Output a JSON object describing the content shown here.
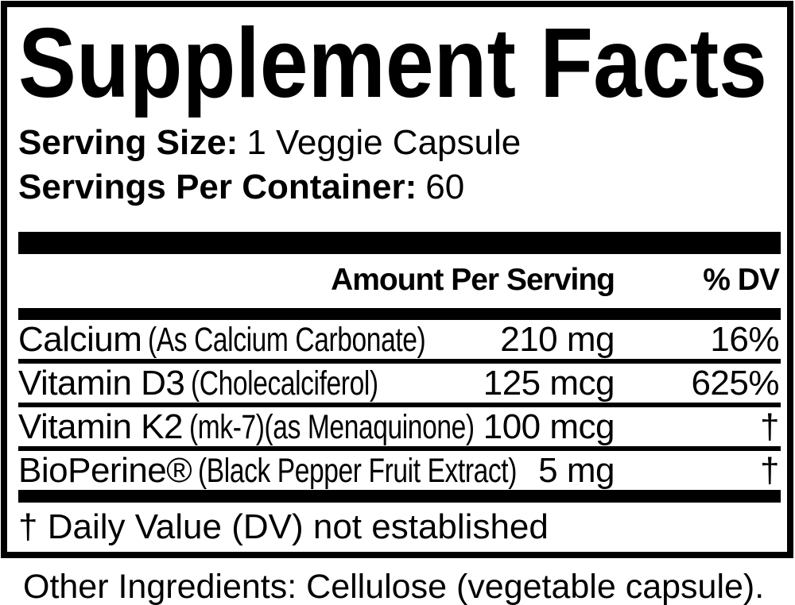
{
  "panel": {
    "title": "Supplement Facts",
    "serving": {
      "size_label": "Serving Size:",
      "size_value": "1 Veggie Capsule",
      "per_container_label": "Servings Per Container:",
      "per_container_value": "60"
    },
    "table": {
      "amount_header": "Amount Per Serving",
      "dv_header": "% DV",
      "rows": [
        {
          "name": "Calcium",
          "detail": "(As Calcium Carbonate)",
          "amount": "210 mg",
          "dv": "16%"
        },
        {
          "name": "Vitamin D3",
          "detail": "(Cholecalciferol)",
          "amount": "125 mcg",
          "dv": "625%"
        },
        {
          "name": "Vitamin K2",
          "detail": "(mk-7)(as Menaquinone)",
          "amount": "100 mcg",
          "dv": "†"
        },
        {
          "name": "BioPerine®",
          "detail": "(Black Pepper Fruit Extract)",
          "amount": "5 mg",
          "dv": "†"
        }
      ],
      "footnote": "† Daily Value (DV) not established"
    },
    "other_ingredients": "Other Ingredients: Cellulose (vegetable capsule).",
    "colors": {
      "ink": "#000000",
      "background": "#ffffff"
    }
  }
}
